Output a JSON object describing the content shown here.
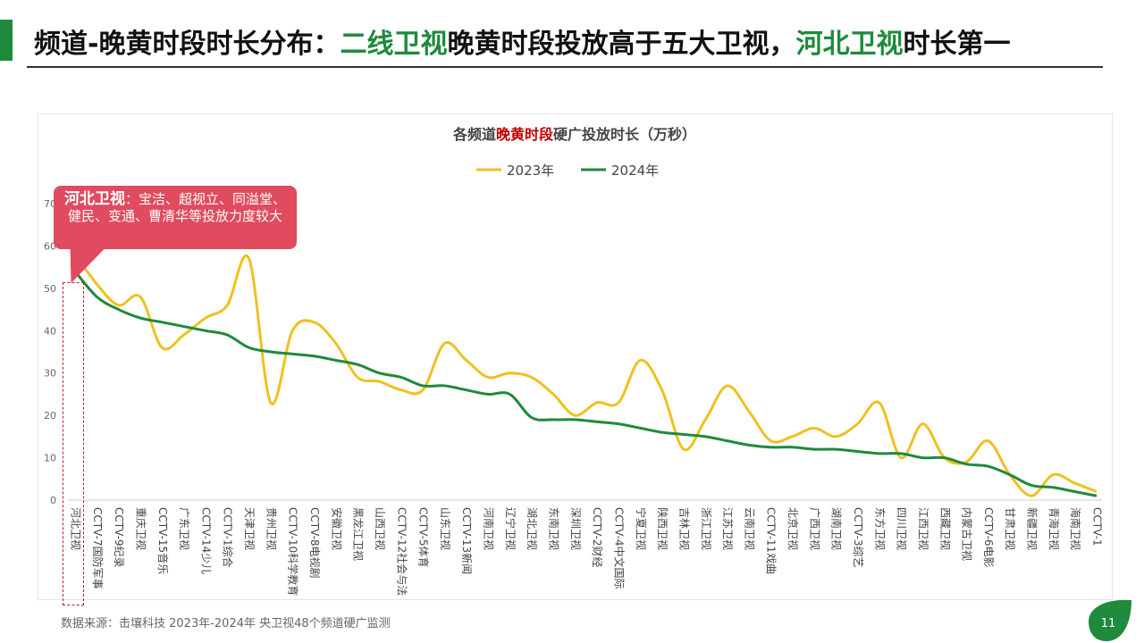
{
  "header": {
    "title_prefix": "频道-晚黄时段时长分布：",
    "title_green1": "二线卫视",
    "title_mid": "晚黄时段投放高于五大卫视，",
    "title_green2": "河北卫视",
    "title_suffix": "时长第一"
  },
  "colors": {
    "accent": "#1f8a3c",
    "series_2023": "#f0c020",
    "series_2024": "#1f8a3c",
    "callout": "#e14b5f"
  },
  "callout": {
    "name": "河北卫视",
    "text": "：宝洁、超视立、同溢堂、健民、变通、曹清华等投放力度较大"
  },
  "footer": {
    "source": "数据来源：击壤科技  2023年-2024年 央卫视48个频道硬广监测",
    "page": "11"
  },
  "chart_data": {
    "type": "line",
    "title_before": "各频道",
    "title_highlight": "晚黄时段",
    "title_after": "硬广投放时长（万秒）",
    "legend_position": "top",
    "ylim": [
      0,
      70
    ],
    "yticks": [
      0,
      10,
      20,
      30,
      40,
      50,
      60,
      70
    ],
    "categories": [
      "河北卫视",
      "CCTV-7国防军事",
      "CCTV-9纪录",
      "重庆卫视",
      "CCTV-15音乐",
      "广东卫视",
      "CCTV-14少儿",
      "CCTV-1综合",
      "天津卫视",
      "贵州卫视",
      "CCTV-10科学教育",
      "CCTV-8电视剧",
      "安徽卫视",
      "黑龙江卫视",
      "山西卫视",
      "CCTV-12社会与法",
      "CCTV-5体育",
      "山东卫视",
      "CCTV-13新闻",
      "河南卫视",
      "辽宁卫视",
      "湖北卫视",
      "东南卫视",
      "深圳卫视",
      "CCTV-2财经",
      "CCTV-4中文国际",
      "宁夏卫视",
      "陕西卫视",
      "吉林卫视",
      "浙江卫视",
      "江苏卫视",
      "云南卫视",
      "CCTV-11戏曲",
      "北京卫视",
      "广西卫视",
      "湖南卫视",
      "CCTV-3综艺",
      "东方卫视",
      "四川卫视",
      "江西卫视",
      "西藏卫视",
      "内蒙古卫视",
      "CCTV-6电影",
      "甘肃卫视",
      "新疆卫视",
      "青海卫视",
      "海南卫视",
      "CCTV-1"
    ],
    "series": [
      {
        "name": "2023年",
        "values": [
          58,
          51,
          46,
          48,
          36,
          39,
          43,
          46,
          57,
          23,
          40,
          42,
          37,
          29,
          28,
          26,
          26,
          37,
          33,
          29,
          30,
          29,
          25,
          20,
          23,
          23,
          33,
          26,
          12,
          19,
          27,
          21,
          14,
          15,
          17,
          15,
          18,
          23,
          10,
          18,
          10,
          9,
          14,
          6,
          1,
          6,
          4,
          2
        ]
      },
      {
        "name": "2024年",
        "values": [
          54,
          48,
          45,
          43,
          42,
          41,
          40,
          39,
          36,
          35,
          34.5,
          34,
          33,
          32,
          30,
          29,
          27,
          27,
          26,
          25,
          25,
          19.5,
          19,
          19,
          18.5,
          18,
          17,
          16,
          15.5,
          15,
          14,
          13,
          12.5,
          12.5,
          12,
          12,
          11.5,
          11,
          11,
          10,
          10,
          8.5,
          8,
          6,
          3.5,
          3,
          2,
          1
        ]
      }
    ]
  }
}
